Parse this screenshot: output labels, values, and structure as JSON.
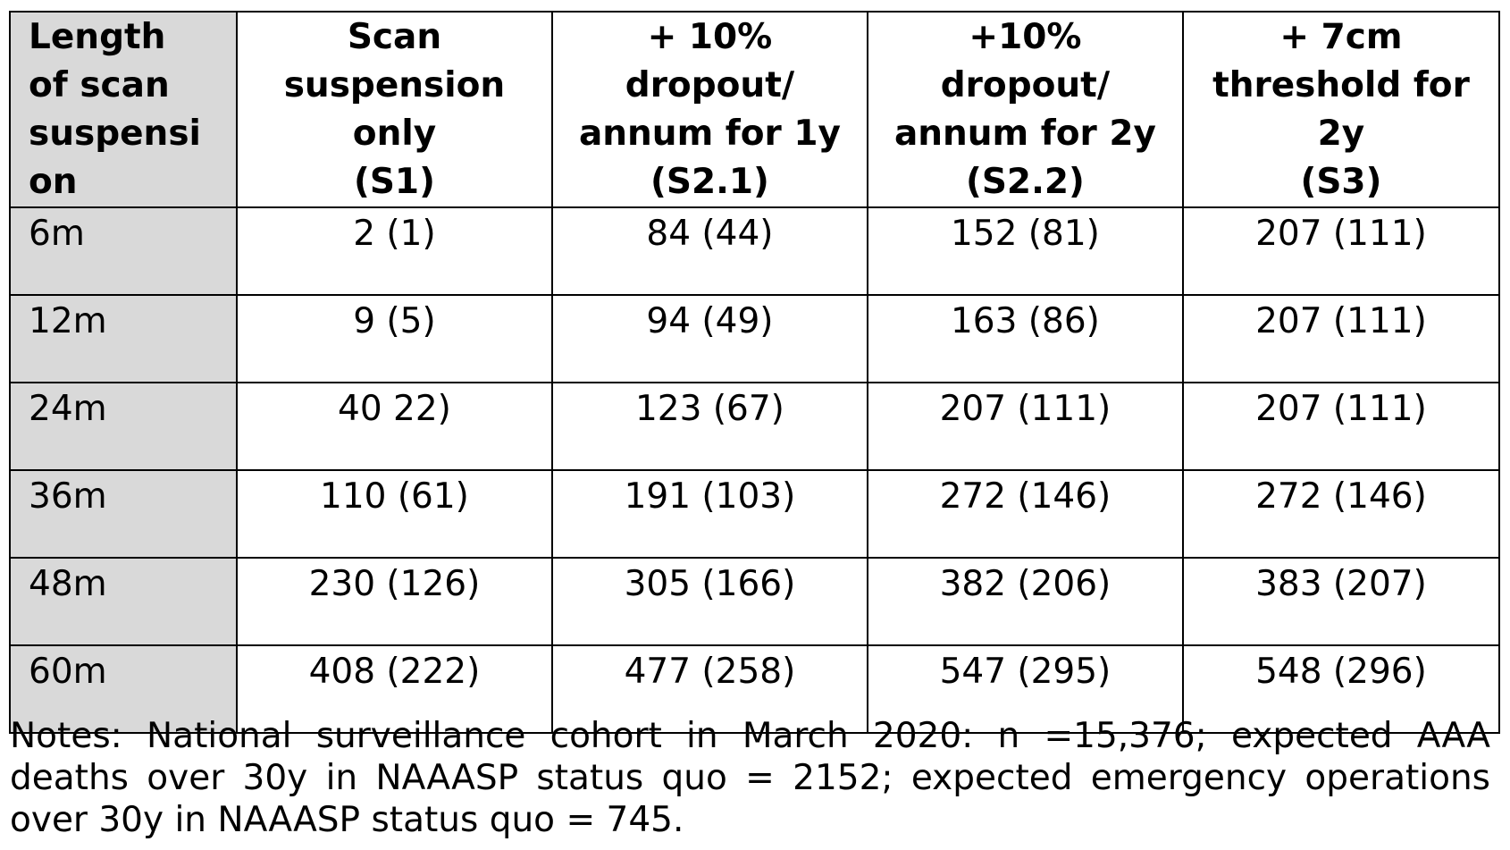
{
  "table": {
    "headers": [
      [
        "Length",
        "of scan",
        "suspensi",
        "on"
      ],
      [
        "Scan",
        "suspension",
        "only",
        "(S1)"
      ],
      [
        "+ 10%",
        "dropout/",
        "annum for 1y",
        "(S2.1)"
      ],
      [
        "+10%",
        "dropout/",
        "annum for 2y",
        "(S2.2)"
      ],
      [
        "+ 7cm",
        "threshold for",
        "2y",
        "(S3)"
      ]
    ],
    "rows": [
      [
        "6m",
        "2 (1)",
        "84 (44)",
        "152 (81)",
        "207 (111)"
      ],
      [
        "12m",
        "9 (5)",
        "94 (49)",
        "163 (86)",
        "207 (111)"
      ],
      [
        "24m",
        "40 22)",
        "123 (67)",
        "207 (111)",
        "207 (111)"
      ],
      [
        "36m",
        "110 (61)",
        "191 (103)",
        "272 (146)",
        "272 (146)"
      ],
      [
        "48m",
        "230 (126)",
        "305 (166)",
        "382 (206)",
        "383 (207)"
      ],
      [
        "60m",
        "408 (222)",
        "477 (258)",
        "547 (295)",
        "548 (296)"
      ]
    ]
  },
  "notes": [
    "Notes: National surveillance cohort in March 2020: n =15,376; expected AAA",
    "deaths over 30y in NAAASP status quo = 2152; expected emergency operations",
    "over 30y in NAAASP status quo = 745."
  ],
  "colors": {
    "first_column_bg": "#d9d9d9",
    "border": "#000000"
  }
}
